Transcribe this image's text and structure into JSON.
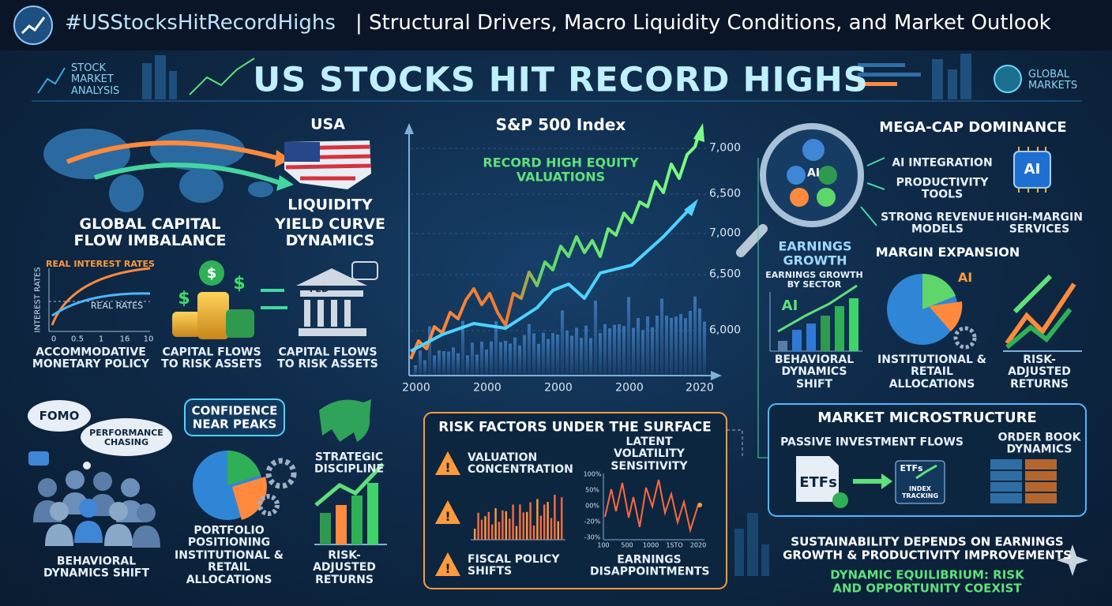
{
  "header": {
    "hashtag": "#USStocksHitRecordHighs",
    "subtitle": "| Structural Drivers, Macro Liquidity Conditions, and Market Outlook"
  },
  "banner": {
    "left_badge": "STOCK MARKET ANALYSIS",
    "title": "US STOCKS HIT RECORD HIGHS",
    "right_badge": "GLOBAL MARKETS"
  },
  "macro": {
    "usa": "USA",
    "global_flow": "GLOBAL CAPITAL FLOW IMBALANCE",
    "liquidity": "LIQUIDITY",
    "yield_curve": "YIELD CURVE DYNAMICS",
    "rates_chart": {
      "top_label": "REAL INTEREST RATES",
      "line_label": "REAL RATES",
      "y_label": "INTEREST RATES",
      "x_ticks": [
        "0",
        "0.5",
        "1",
        "16",
        "10"
      ]
    },
    "fed": "FED",
    "captions": [
      "ACCOMMODATIVE MONETARY POLICY",
      "CAPITAL FLOWS TO RISK ASSETS",
      "CAPITAL FLOWS TO RISK ASSETS"
    ]
  },
  "index_chart": {
    "title": "S&P 500 Index",
    "annotation": "RECORD HIGH EQUITY VALUATIONS",
    "y_labels": [
      "7,000",
      "6,500",
      "7,000",
      "6,500",
      "6,000"
    ],
    "x_labels": [
      "2000",
      "2000",
      "2000",
      "2000",
      "2020"
    ]
  },
  "megacap": {
    "title": "MEGA-CAP DOMINANCE",
    "lens_label": "AI",
    "items": [
      "AI INTEGRATION",
      "PRODUCTIVITY TOOLS",
      "STRONG REVENUE MODELS"
    ],
    "chip": "AI",
    "chip_caption": "HIGH-MARGIN SERVICES",
    "earnings": "EARNINGS GROWTH",
    "margin": "MARGIN EXPANSION",
    "sector_label": "EARNINGS GROWTH BY SECTOR",
    "sector_ai": "AI",
    "pie_ai": "AI",
    "captions": [
      "BEHAVIORAL DYNAMICS SHIFT",
      "INSTITUTIONAL & RETAIL ALLOCATIONS",
      "RISK-ADJUSTED RETURNS"
    ]
  },
  "behavior": {
    "fomo": "FOMO",
    "chasing": "PERFORMANCE CHASING",
    "confidence": "CONFIDENCE NEAR PEAKS",
    "discipline": "STRATEGIC DISCIPLINE",
    "positioning": "PORTFOLIO POSITIONING",
    "captions": [
      "BEHAVIORAL DYNAMICS SHIFT",
      "INSTITUTIONAL & RETAIL ALLOCATIONS",
      "RISK-ADJUSTED RETURNS"
    ]
  },
  "risk": {
    "title": "RISK FACTORS UNDER THE SURFACE",
    "valuation": "VALUATION CONCENTRATION",
    "volatility": "LATENT VOLATILITY SENSITIVITY",
    "fiscal": "FISCAL POLICY SHIFTS",
    "earnings": "EARNINGS DISAPPOINTMENTS",
    "vol_y_labels": [
      "100%",
      "50%",
      "00%",
      "-20%",
      "-30%"
    ],
    "vol_x_labels": [
      "100",
      "500",
      "1000",
      "1STO",
      "2020"
    ]
  },
  "micro": {
    "title": "MARKET MICROSTRUCTURE",
    "passive": "PASSIVE INVESTMENT FLOWS",
    "order_book": "ORDER BOOK DYNAMICS",
    "etf_big": "ETFs",
    "etf_small": "ETFs",
    "index_tracking": "INDEX TRACKING"
  },
  "outlook": {
    "sustainability": "SUSTAINABILITY DEPENDS ON EARNINGS GROWTH & PRODUCTIVITY IMPROVEMENTS",
    "equilibrium": "DYNAMIC EQUILIBRIUM: RISK AND OPPORTUNITY COEXIST"
  }
}
